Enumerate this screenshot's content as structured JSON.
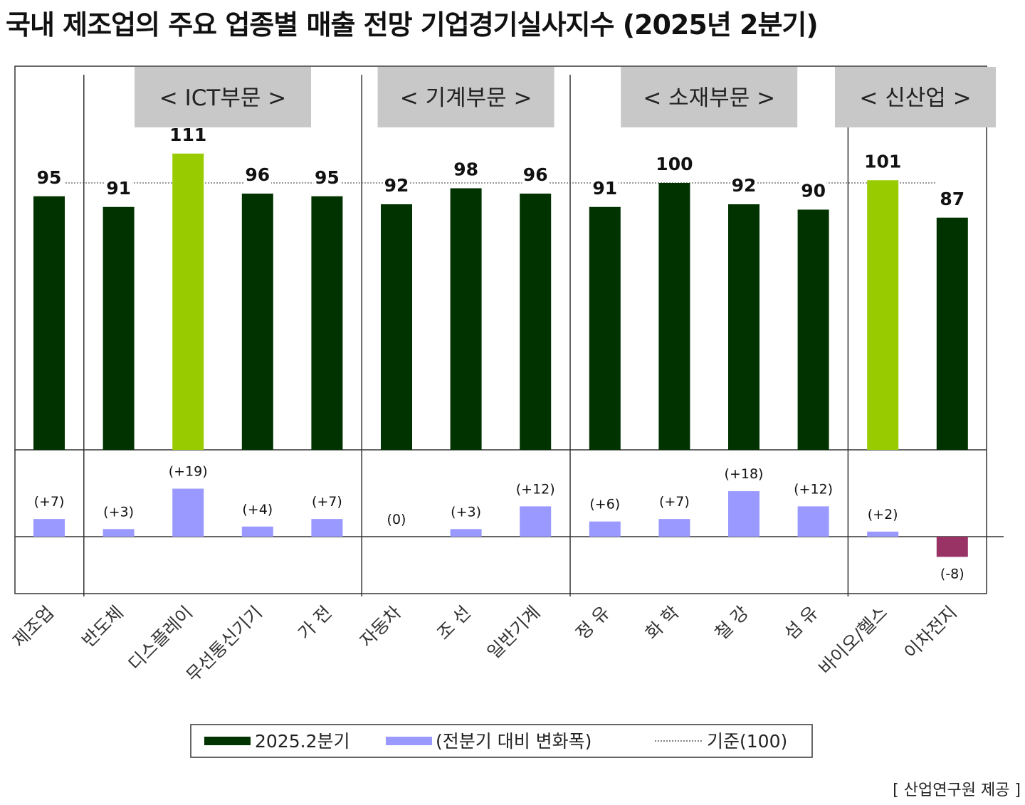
{
  "title": "국내 제조업의 주요 업종별 매출 전망 기업경기실사지수 (2025년 2분기)",
  "source": "[ 산업연구원 제공 ]",
  "colors": {
    "main_bar": "#013300",
    "highlight_bar": "#99cc00",
    "change_positive": "#9999ff",
    "change_negative": "#993366",
    "group_header_bg": "#c8c8c8"
  },
  "chart_data": {
    "type": "bar",
    "title": "국내 제조업의 주요 업종별 매출 전망 기업경기실사지수 (2025년 2분기)",
    "categories": [
      "제조업",
      "반도체",
      "디스플레이",
      "무선통신기기",
      "가 전",
      "자동차",
      "조 선",
      "일반기계",
      "정 유",
      "화 학",
      "철 강",
      "섬 유",
      "바이오/헬스",
      "이차전지"
    ],
    "series": [
      {
        "name": "2025.2분기",
        "values": [
          95,
          91,
          111,
          96,
          95,
          92,
          98,
          96,
          91,
          100,
          92,
          90,
          101,
          87
        ],
        "labels": [
          "95",
          "91",
          "111",
          "96",
          "95",
          "92",
          "98",
          "96",
          "91",
          "100",
          "92",
          "90",
          "101",
          "87"
        ],
        "highlight": [
          false,
          false,
          true,
          false,
          false,
          false,
          false,
          false,
          false,
          false,
          false,
          false,
          true,
          false
        ]
      },
      {
        "name": "(전분기 대비 변화폭)",
        "values": [
          7,
          3,
          19,
          4,
          7,
          0,
          3,
          12,
          6,
          7,
          18,
          12,
          2,
          -8
        ],
        "labels": [
          "(+7)",
          "(+3)",
          "(+19)",
          "(+4)",
          "(+7)",
          "(0)",
          "(+3)",
          "(+12)",
          "(+6)",
          "(+7)",
          "(+18)",
          "(+12)",
          "(+2)",
          "(-8)"
        ]
      }
    ],
    "reference": {
      "name": "기준(100)",
      "value": 100
    },
    "groups": [
      {
        "label": "< ICT부문 >",
        "from": 1,
        "to": 4
      },
      {
        "label": "< 기계부문 >",
        "from": 5,
        "to": 7
      },
      {
        "label": "< 소재부문 >",
        "from": 8,
        "to": 11
      },
      {
        "label": "< 신산업 >",
        "from": 12,
        "to": 13
      }
    ],
    "legend": [
      "2025.2분기",
      "(전분기 대비 변화폭)",
      "기준(100)"
    ],
    "legend_position": "bottom"
  }
}
